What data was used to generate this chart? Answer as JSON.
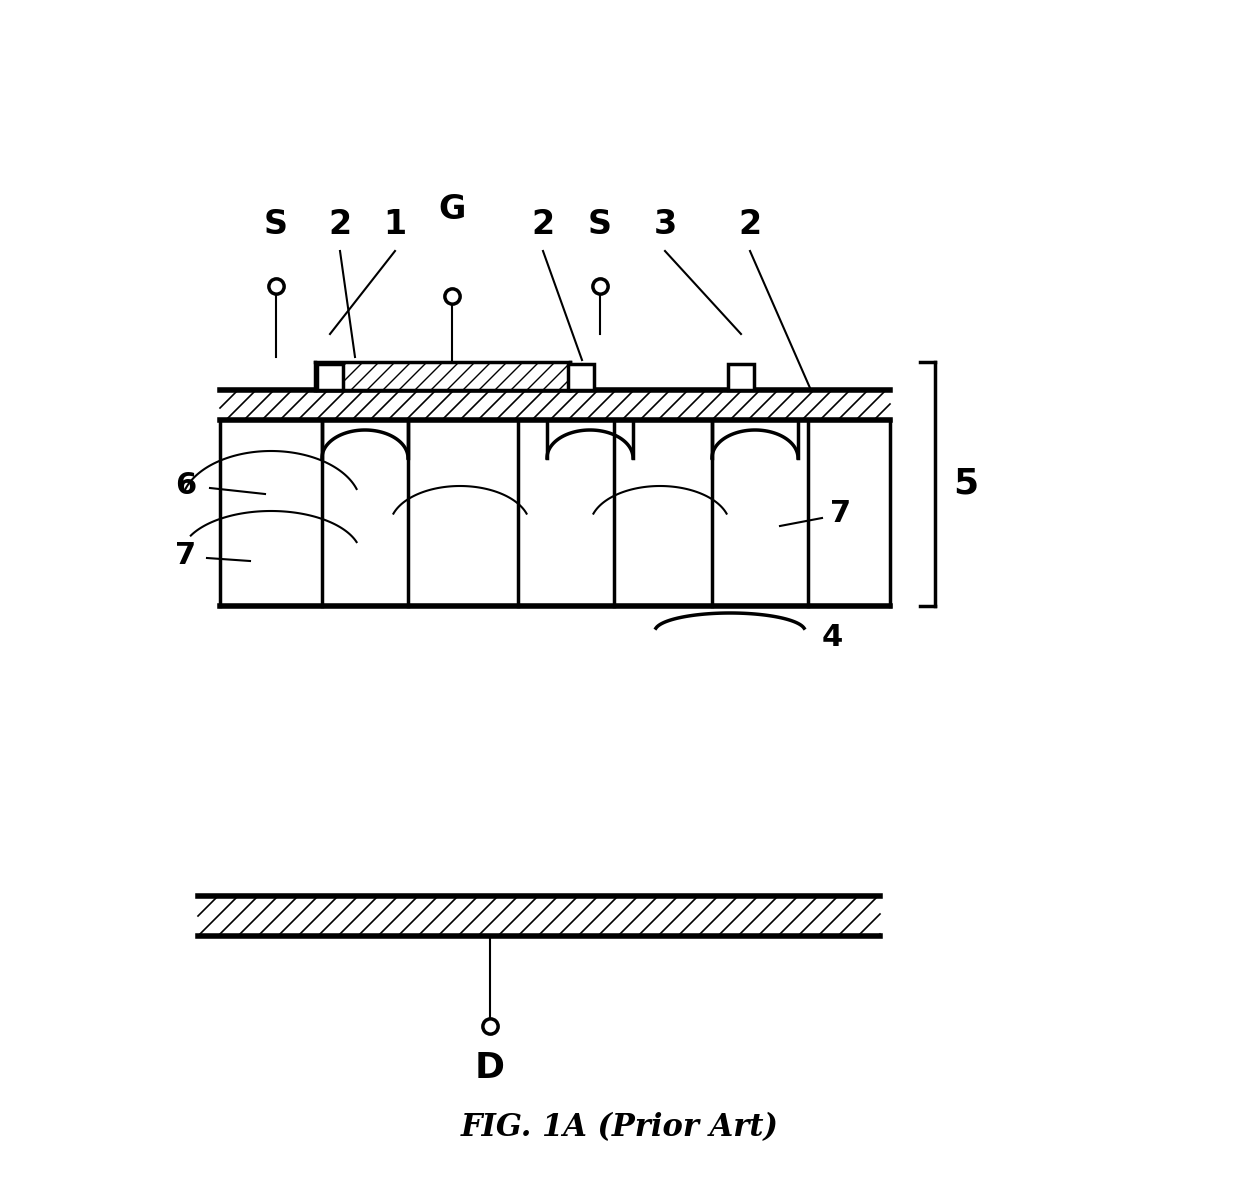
{
  "title": "FIG. 1A (Prior Art)",
  "bg_color": "#ffffff",
  "line_color": "#000000",
  "fig_width": 12.4,
  "fig_height": 11.86,
  "labels": {
    "S_left": "S",
    "label_2_left": "2",
    "label_1": "1",
    "G": "G",
    "label_2_mid": "2",
    "S_mid": "S",
    "label_3": "3",
    "label_2_right": "2",
    "label_6": "6",
    "label_7_left": "7",
    "label_7_right": "7",
    "label_5": "5",
    "label_4": "4",
    "D": "D"
  }
}
